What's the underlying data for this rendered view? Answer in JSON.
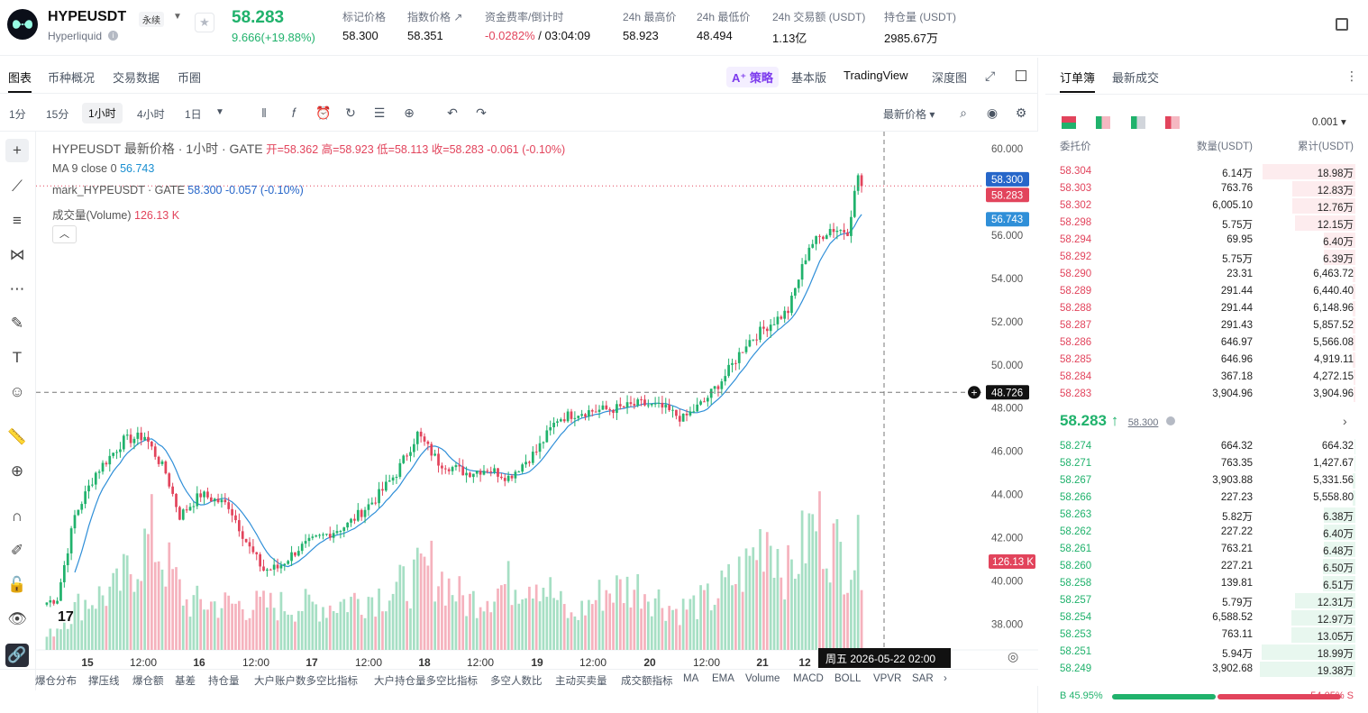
{
  "header": {
    "symbol": "HYPEUSDT",
    "contract_type": "永续",
    "exchange": "Hyperliquid",
    "last_price": "58.283",
    "change": "9.666(+19.88%)",
    "stats": [
      {
        "label": "标记价格",
        "value": "58.300",
        "color": "#111111"
      },
      {
        "label": "指数价格 ↗",
        "value": "58.351",
        "color": "#111111"
      },
      {
        "label": "资金费率/倒计时",
        "value": "-0.0282%",
        "extra": " / 03:04:09",
        "color": "#e2445c"
      },
      {
        "label": "24h 最高价",
        "value": "58.923",
        "color": "#111111"
      },
      {
        "label": "24h 最低价",
        "value": "48.494",
        "color": "#111111"
      },
      {
        "label": "24h 交易额 (USDT)",
        "value": "1.13亿",
        "color": "#111111"
      },
      {
        "label": "持仓量 (USDT)",
        "value": "2985.67万",
        "color": "#111111"
      }
    ]
  },
  "chart_tabs": [
    "图表",
    "币种概况",
    "交易数据",
    "币圈"
  ],
  "chart_right_tabs": {
    "ai": "策略",
    "basic": "基本版",
    "tv": "TradingView",
    "depth": "深度图"
  },
  "timeframes": [
    "1分",
    "15分",
    "1小时",
    "4小时",
    "1日"
  ],
  "price_select": "最新价格",
  "legend": {
    "title": "HYPEUSDT 最新价格 · 1小时 · GATE",
    "open": "开=58.362",
    "high": "高=58.923",
    "low": "低=58.113",
    "close": "收=58.283",
    "chg": "-0.061 (-0.10%)",
    "ma_label": "MA 9 close 0",
    "ma_value": "56.743",
    "mark_label": "mark_HYPEUSDT · GATE",
    "mark_value": "58.300 -0.057 (-0.10%)",
    "vol_label": "成交量(Volume)",
    "vol_value": "126.13 K"
  },
  "axis_tags": {
    "mark": "58.300",
    "last": "58.283",
    "ma": "56.743",
    "cross": "48.726",
    "volume": "126.13 K",
    "time": "周五 2026-05-22   02:00"
  },
  "indicators": [
    "爆仓分布",
    "撑压线",
    "爆仓额",
    "基差",
    "持仓量",
    "大户账户数多空比指标",
    "大户持仓量多空比指标",
    "多空人数比",
    "主动买卖量",
    "成交额指标",
    "MA",
    "EMA",
    "Volume",
    "MACD",
    "BOLL",
    "VPVR",
    "SAR"
  ],
  "chart_data": {
    "type": "candlestick",
    "y_ticks": [
      "60.000",
      "58.000",
      "56.000",
      "54.000",
      "52.000",
      "50.000",
      "48.000",
      "46.000",
      "44.000",
      "42.000",
      "40.000",
      "38.000"
    ],
    "y_range": [
      36.8,
      60.8
    ],
    "x_ticks": [
      "15",
      "12:00",
      "16",
      "12:00",
      "17",
      "12:00",
      "18",
      "12:00",
      "19",
      "12:00",
      "20",
      "12:00",
      "21",
      "12"
    ],
    "close_anchors": [
      [
        0,
        39.0
      ],
      [
        3,
        39.2
      ],
      [
        8,
        43.0
      ],
      [
        14,
        45.0
      ],
      [
        22,
        46.5
      ],
      [
        28,
        46.7
      ],
      [
        34,
        45.0
      ],
      [
        38,
        43.0
      ],
      [
        44,
        44.0
      ],
      [
        52,
        43.5
      ],
      [
        58,
        41.5
      ],
      [
        62,
        40.5
      ],
      [
        66,
        40.6
      ],
      [
        72,
        41.5
      ],
      [
        78,
        42.0
      ],
      [
        86,
        42.6
      ],
      [
        94,
        43.8
      ],
      [
        100,
        45.0
      ],
      [
        106,
        46.8
      ],
      [
        112,
        45.5
      ],
      [
        120,
        45.0
      ],
      [
        126,
        45.2
      ],
      [
        132,
        44.8
      ],
      [
        140,
        46.0
      ],
      [
        146,
        47.5
      ],
      [
        152,
        47.8
      ],
      [
        158,
        47.9
      ],
      [
        164,
        48.0
      ],
      [
        170,
        48.2
      ],
      [
        176,
        48.0
      ],
      [
        182,
        47.5
      ],
      [
        188,
        48.3
      ],
      [
        194,
        49.5
      ],
      [
        200,
        51.0
      ],
      [
        206,
        51.8
      ],
      [
        212,
        52.5
      ],
      [
        218,
        55.5
      ],
      [
        224,
        56.3
      ],
      [
        229,
        56.2
      ],
      [
        232,
        58.8
      ],
      [
        233,
        58.283
      ]
    ],
    "volume_anchors": [
      [
        0,
        8
      ],
      [
        10,
        30
      ],
      [
        20,
        38
      ],
      [
        30,
        72
      ],
      [
        40,
        30
      ],
      [
        60,
        28
      ],
      [
        80,
        28
      ],
      [
        100,
        38
      ],
      [
        110,
        52
      ],
      [
        120,
        30
      ],
      [
        130,
        40
      ],
      [
        140,
        48
      ],
      [
        150,
        20
      ],
      [
        160,
        38
      ],
      [
        170,
        40
      ],
      [
        180,
        25
      ],
      [
        190,
        32
      ],
      [
        200,
        52
      ],
      [
        206,
        78
      ],
      [
        212,
        48
      ],
      [
        220,
        82
      ],
      [
        228,
        58
      ],
      [
        233,
        62
      ]
    ],
    "volume_ylim": [
      0,
      100
    ],
    "ma_period": 9
  },
  "orderbook": {
    "tabs": [
      "订单簿",
      "最新成交"
    ],
    "precision": "0.001",
    "headers": {
      "price": "委托价",
      "amount": "数量(USDT)",
      "total": "累计(USDT)"
    },
    "asks": [
      {
        "p": "58.304",
        "a": "6.14万",
        "s": "18.98万",
        "d": 0.97
      },
      {
        "p": "58.303",
        "a": "763.76",
        "s": "12.83万",
        "d": 0.66
      },
      {
        "p": "58.302",
        "a": "6,005.10",
        "s": "12.76万",
        "d": 0.66
      },
      {
        "p": "58.298",
        "a": "5.75万",
        "s": "12.15万",
        "d": 0.63
      },
      {
        "p": "58.294",
        "a": "69.95",
        "s": "6.40万",
        "d": 0.33
      },
      {
        "p": "58.292",
        "a": "5.75万",
        "s": "6.39万",
        "d": 0.33
      },
      {
        "p": "58.290",
        "a": "23.31",
        "s": "6,463.72",
        "d": 0.03
      },
      {
        "p": "58.289",
        "a": "291.44",
        "s": "6,440.40",
        "d": 0.03
      },
      {
        "p": "58.288",
        "a": "291.44",
        "s": "6,148.96",
        "d": 0.03
      },
      {
        "p": "58.287",
        "a": "291.43",
        "s": "5,857.52",
        "d": 0.03
      },
      {
        "p": "58.286",
        "a": "646.97",
        "s": "5,566.08",
        "d": 0.03
      },
      {
        "p": "58.285",
        "a": "646.96",
        "s": "4,919.11",
        "d": 0.03
      },
      {
        "p": "58.284",
        "a": "367.18",
        "s": "4,272.15",
        "d": 0.02
      },
      {
        "p": "58.283",
        "a": "3,904.96",
        "s": "3,904.96",
        "d": 0.02
      }
    ],
    "mid_price": "58.283 ↑",
    "mid_mark": "58.300",
    "bids": [
      {
        "p": "58.274",
        "a": "664.32",
        "s": "664.32",
        "d": 0.01
      },
      {
        "p": "58.271",
        "a": "763.35",
        "s": "1,427.67",
        "d": 0.01
      },
      {
        "p": "58.267",
        "a": "3,903.88",
        "s": "5,331.56",
        "d": 0.03
      },
      {
        "p": "58.266",
        "a": "227.23",
        "s": "5,558.80",
        "d": 0.03
      },
      {
        "p": "58.263",
        "a": "5.82万",
        "s": "6.38万",
        "d": 0.33
      },
      {
        "p": "58.262",
        "a": "227.22",
        "s": "6.40万",
        "d": 0.33
      },
      {
        "p": "58.261",
        "a": "763.21",
        "s": "6.48万",
        "d": 0.33
      },
      {
        "p": "58.260",
        "a": "227.21",
        "s": "6.50万",
        "d": 0.34
      },
      {
        "p": "58.258",
        "a": "139.81",
        "s": "6.51万",
        "d": 0.34
      },
      {
        "p": "58.257",
        "a": "5.79万",
        "s": "12.31万",
        "d": 0.63
      },
      {
        "p": "58.254",
        "a": "6,588.52",
        "s": "12.97万",
        "d": 0.67
      },
      {
        "p": "58.253",
        "a": "763.11",
        "s": "13.05万",
        "d": 0.67
      },
      {
        "p": "58.251",
        "a": "5.94万",
        "s": "18.99万",
        "d": 0.98
      },
      {
        "p": "58.249",
        "a": "3,902.68",
        "s": "19.38万",
        "d": 1.0
      }
    ],
    "buy_ratio": "B 45.95%",
    "sell_ratio": "54.05% S",
    "buy_frac": 0.4595
  },
  "colors": {
    "up": "#20b26c",
    "down": "#e2445c",
    "ma": "#2f8fd8"
  }
}
